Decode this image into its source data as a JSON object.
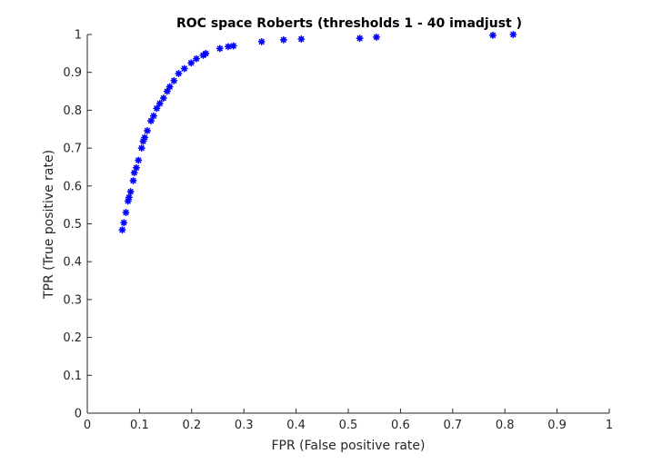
{
  "chart_data": {
    "type": "scatter",
    "title": "ROC space Roberts (thresholds 1 - 40  imadjust )",
    "xlabel": "FPR (False positive rate)",
    "ylabel": "TPR (True positive rate)",
    "xlim": [
      0,
      1
    ],
    "ylim": [
      0,
      1
    ],
    "xticks": [
      "0",
      "0.1",
      "0.2",
      "0.3",
      "0.4",
      "0.5",
      "0.6",
      "0.7",
      "0.8",
      "0.9",
      "1"
    ],
    "yticks": [
      "0",
      "0.1",
      "0.2",
      "0.3",
      "0.4",
      "0.5",
      "0.6",
      "0.7",
      "0.8",
      "0.9",
      "1"
    ],
    "grid": false,
    "marker": "*",
    "marker_color": "#0000ff",
    "series": [
      {
        "x": [
          0.067,
          0.07,
          0.074,
          0.078,
          0.08,
          0.083,
          0.088,
          0.09,
          0.094,
          0.098,
          0.104,
          0.107,
          0.11,
          0.115,
          0.122,
          0.127,
          0.133,
          0.139,
          0.146,
          0.153,
          0.158,
          0.166,
          0.175,
          0.186,
          0.199,
          0.209,
          0.222,
          0.227,
          0.254,
          0.27,
          0.28,
          0.334,
          0.376,
          0.41,
          0.522,
          0.554,
          0.777,
          0.816
        ],
        "y": [
          0.484,
          0.503,
          0.53,
          0.56,
          0.57,
          0.585,
          0.614,
          0.635,
          0.648,
          0.668,
          0.7,
          0.718,
          0.728,
          0.746,
          0.772,
          0.785,
          0.805,
          0.818,
          0.832,
          0.85,
          0.862,
          0.878,
          0.897,
          0.91,
          0.925,
          0.936,
          0.945,
          0.95,
          0.963,
          0.968,
          0.97,
          0.981,
          0.986,
          0.988,
          0.99,
          0.993,
          0.998,
          1.0
        ]
      }
    ]
  }
}
